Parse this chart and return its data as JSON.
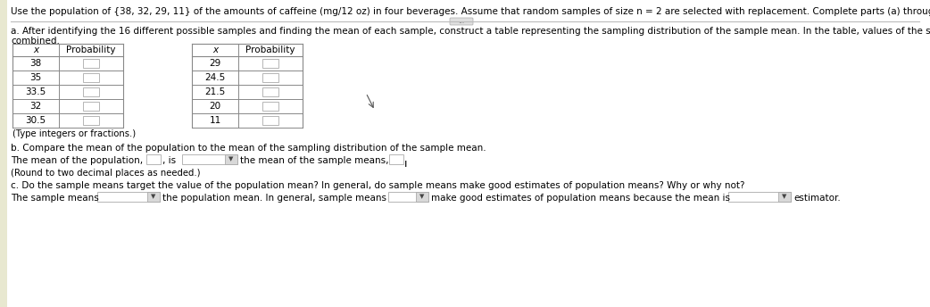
{
  "title_line1": "Use the population of {38, 32, 29, 11} of the amounts of caffeine (mg/12 oz) in four beverages. Assume that random samples of size n = 2 are selected with replacement. Complete parts (a) through (c) below.",
  "part_a_text1": "a. After identifying the 16 different possible samples and finding the mean of each sample, construct a table representing the sampling distribution of the sample mean. In the table, values of the sample mean that are the same have been",
  "part_a_text2": "combined.",
  "table1_x": [
    "38",
    "35",
    "33.5",
    "32",
    "30.5"
  ],
  "table2_x": [
    "29",
    "24.5",
    "21.5",
    "20",
    "11"
  ],
  "table_note": "(Type integers or fractions.)",
  "part_b_label": "b. Compare the mean of the population to the mean of the sampling distribution of the sample mean.",
  "part_b_note": "(Round to two decimal places as needed.)",
  "part_c_label": "c. Do the sample means target the value of the population mean? In general, do sample means make good estimates of population means? Why or why not?",
  "bg_color": "#ffffff",
  "table_line_color": "#888888",
  "text_color": "#000000",
  "input_box_color": "#ffffff",
  "input_box_edge": "#aaaaaa"
}
